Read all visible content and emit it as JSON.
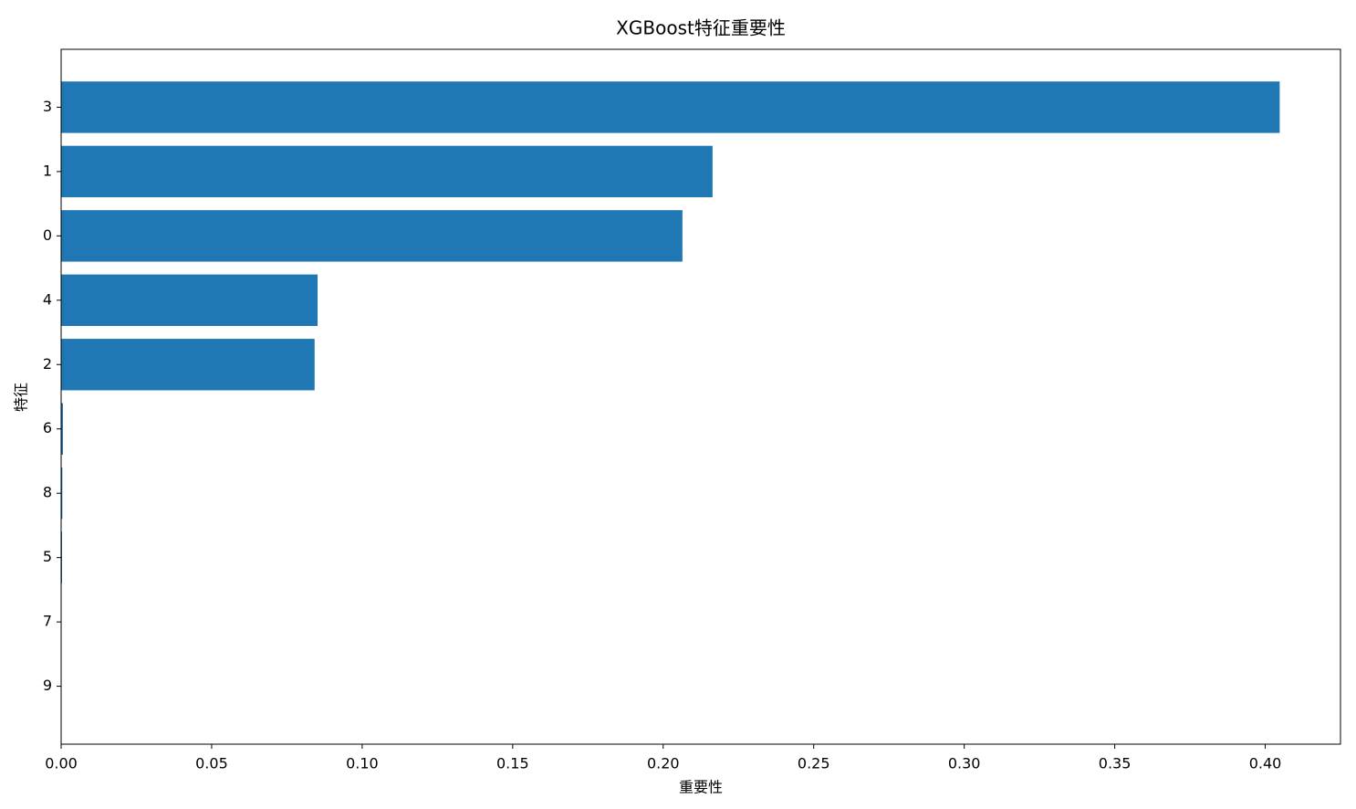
{
  "chart_data": {
    "type": "barh",
    "title": "XGBoost特征重要性",
    "x_label": "重要性",
    "y_label": "特征",
    "categories": [
      "3",
      "1",
      "0",
      "4",
      "2",
      "6",
      "8",
      "5",
      "7",
      "9"
    ],
    "values": [
      0.4048,
      0.2164,
      0.2064,
      0.0852,
      0.0842,
      0.0006,
      0.0004,
      0.0003,
      0.0,
      0.0
    ],
    "color": "#1f77b4",
    "xlim": [
      0,
      0.425
    ],
    "xticks": [
      {
        "value": 0,
        "label": "0.00"
      },
      {
        "value": 0.05,
        "label": "0.05"
      },
      {
        "value": 0.1,
        "label": "0.10"
      },
      {
        "value": 0.15,
        "label": "0.15"
      },
      {
        "value": 0.2,
        "label": "0.20"
      },
      {
        "value": 0.25,
        "label": "0.25"
      },
      {
        "value": 0.3,
        "label": "0.30"
      },
      {
        "value": 0.35,
        "label": "0.35"
      },
      {
        "value": 0.4,
        "label": "0.40"
      }
    ],
    "grid": false
  }
}
